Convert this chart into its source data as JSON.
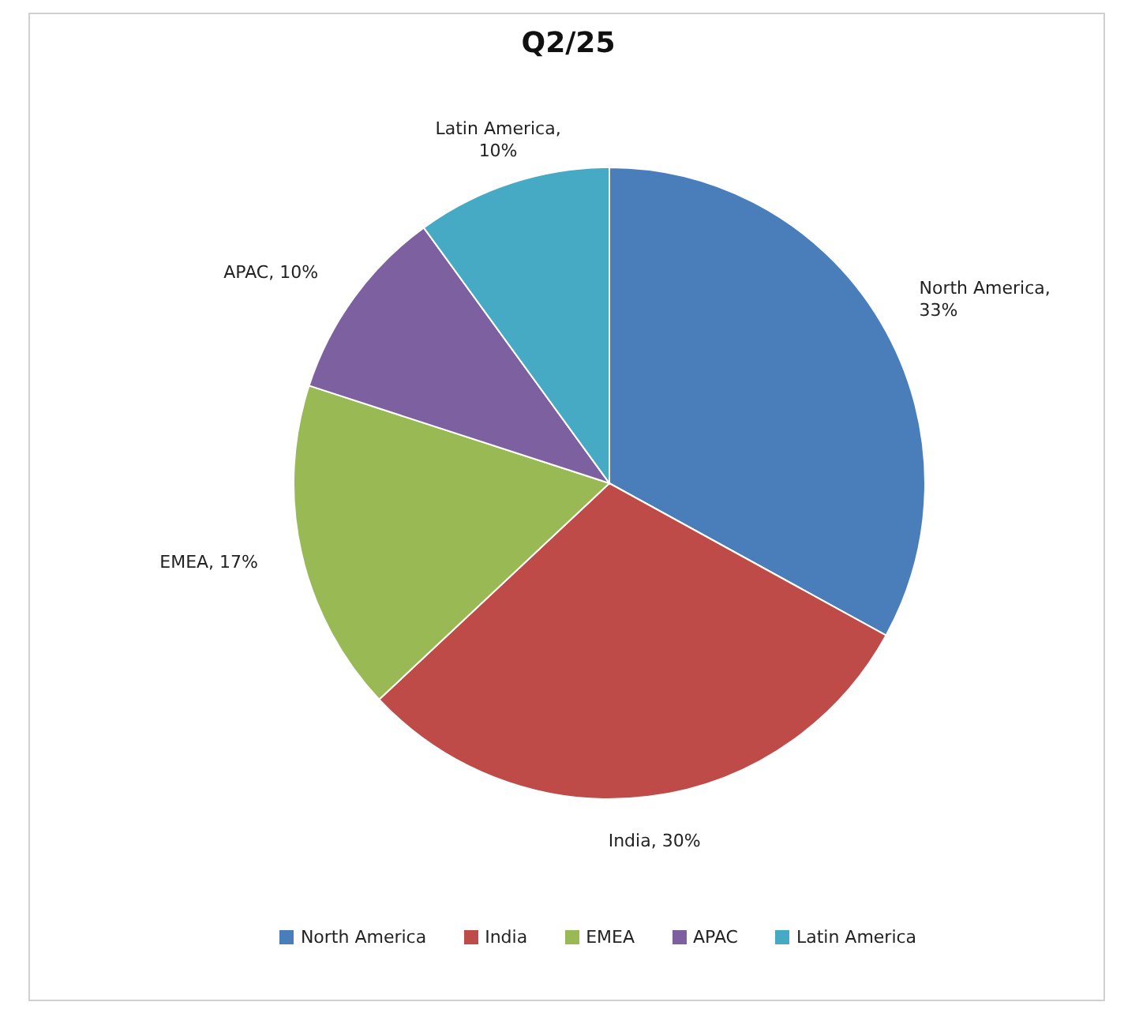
{
  "chart_data": {
    "type": "pie",
    "title": "Q2/25",
    "categories": [
      "North America",
      "India",
      "EMEA",
      "APAC",
      "Latin America"
    ],
    "values": [
      33,
      30,
      17,
      10,
      10
    ],
    "value_labels": [
      "North America, 33%",
      "India, 30%",
      "EMEA, 17%",
      "APAC, 10%",
      "Latin America, 10%"
    ],
    "colors": [
      "#4a7ebb",
      "#be4b48",
      "#98b954",
      "#7d60a0",
      "#46aac5"
    ],
    "legend": "bottom"
  }
}
